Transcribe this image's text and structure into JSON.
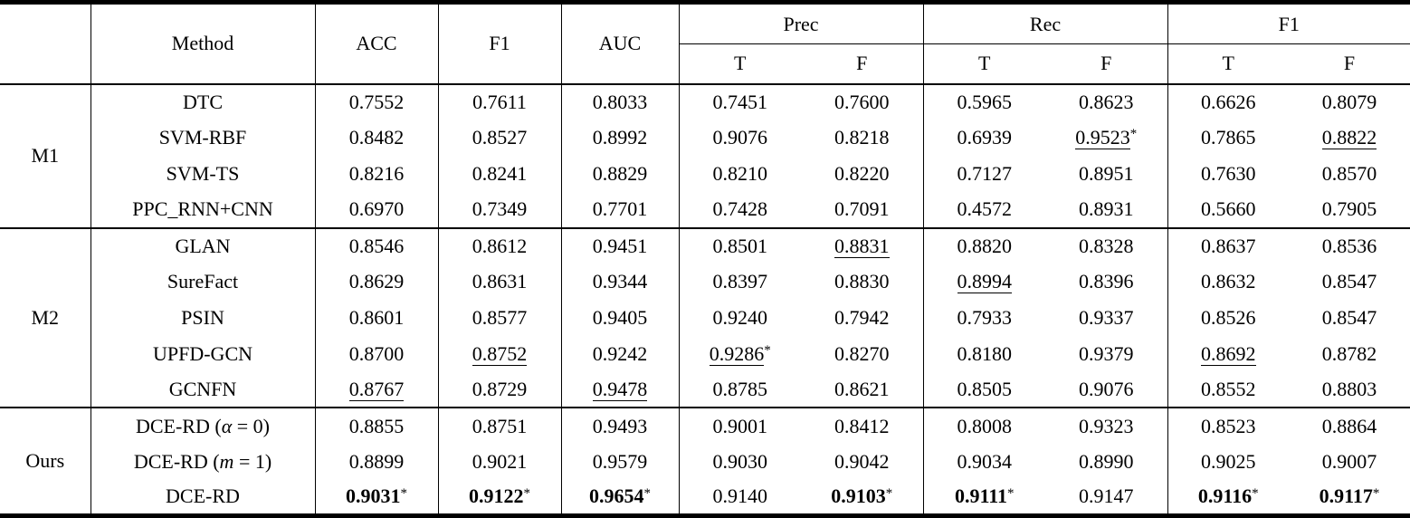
{
  "header": {
    "method": "Method",
    "acc": "ACC",
    "f1": "F1",
    "auc": "AUC",
    "prec": "Prec",
    "rec": "Rec",
    "f1_group": "F1",
    "t": "T",
    "f": "F"
  },
  "colors": {
    "text": "#000000",
    "background": "#ffffff",
    "rule": "#000000"
  },
  "groups": [
    {
      "label": "M1",
      "rows": [
        {
          "method": "DTC",
          "cells": [
            {
              "v": "0.7552"
            },
            {
              "v": "0.7611"
            },
            {
              "v": "0.8033"
            },
            {
              "v": "0.7451"
            },
            {
              "v": "0.7600"
            },
            {
              "v": "0.5965"
            },
            {
              "v": "0.8623"
            },
            {
              "v": "0.6626"
            },
            {
              "v": "0.8079"
            }
          ]
        },
        {
          "method": "SVM-RBF",
          "cells": [
            {
              "v": "0.8482"
            },
            {
              "v": "0.8527"
            },
            {
              "v": "0.8992"
            },
            {
              "v": "0.9076"
            },
            {
              "v": "0.8218"
            },
            {
              "v": "0.6939"
            },
            {
              "v": "0.9523",
              "u": true,
              "star": true
            },
            {
              "v": "0.7865"
            },
            {
              "v": "0.8822",
              "u": true
            }
          ]
        },
        {
          "method": "SVM-TS",
          "cells": [
            {
              "v": "0.8216"
            },
            {
              "v": "0.8241"
            },
            {
              "v": "0.8829"
            },
            {
              "v": "0.8210"
            },
            {
              "v": "0.8220"
            },
            {
              "v": "0.7127"
            },
            {
              "v": "0.8951"
            },
            {
              "v": "0.7630"
            },
            {
              "v": "0.8570"
            }
          ]
        },
        {
          "method": "PPC_RNN+CNN",
          "cells": [
            {
              "v": "0.6970"
            },
            {
              "v": "0.7349"
            },
            {
              "v": "0.7701"
            },
            {
              "v": "0.7428"
            },
            {
              "v": "0.7091"
            },
            {
              "v": "0.4572"
            },
            {
              "v": "0.8931"
            },
            {
              "v": "0.5660"
            },
            {
              "v": "0.7905"
            }
          ]
        }
      ]
    },
    {
      "label": "M2",
      "rows": [
        {
          "method": "GLAN",
          "cells": [
            {
              "v": "0.8546"
            },
            {
              "v": "0.8612"
            },
            {
              "v": "0.9451"
            },
            {
              "v": "0.8501"
            },
            {
              "v": "0.8831",
              "u": true
            },
            {
              "v": "0.8820"
            },
            {
              "v": "0.8328"
            },
            {
              "v": "0.8637"
            },
            {
              "v": "0.8536"
            }
          ]
        },
        {
          "method": "SureFact",
          "cells": [
            {
              "v": "0.8629"
            },
            {
              "v": "0.8631"
            },
            {
              "v": "0.9344"
            },
            {
              "v": "0.8397"
            },
            {
              "v": "0.8830"
            },
            {
              "v": "0.8994",
              "u": true
            },
            {
              "v": "0.8396"
            },
            {
              "v": "0.8632"
            },
            {
              "v": "0.8547"
            }
          ]
        },
        {
          "method": "PSIN",
          "cells": [
            {
              "v": "0.8601"
            },
            {
              "v": "0.8577"
            },
            {
              "v": "0.9405"
            },
            {
              "v": "0.9240"
            },
            {
              "v": "0.7942"
            },
            {
              "v": "0.7933"
            },
            {
              "v": "0.9337"
            },
            {
              "v": "0.8526"
            },
            {
              "v": "0.8547"
            }
          ]
        },
        {
          "method": "UPFD-GCN",
          "cells": [
            {
              "v": "0.8700"
            },
            {
              "v": "0.8752",
              "u": true
            },
            {
              "v": "0.9242"
            },
            {
              "v": "0.9286",
              "u": true,
              "star": true
            },
            {
              "v": "0.8270"
            },
            {
              "v": "0.8180"
            },
            {
              "v": "0.9379"
            },
            {
              "v": "0.8692",
              "u": true
            },
            {
              "v": "0.8782"
            }
          ]
        },
        {
          "method": "GCNFN",
          "cells": [
            {
              "v": "0.8767",
              "u": true
            },
            {
              "v": "0.8729"
            },
            {
              "v": "0.9478",
              "u": true
            },
            {
              "v": "0.8785"
            },
            {
              "v": "0.8621"
            },
            {
              "v": "0.8505"
            },
            {
              "v": "0.9076"
            },
            {
              "v": "0.8552"
            },
            {
              "v": "0.8803"
            }
          ]
        }
      ]
    },
    {
      "label": "Ours",
      "rows": [
        {
          "method": "DCE-RD (α = 0)",
          "cells": [
            {
              "v": "0.8855"
            },
            {
              "v": "0.8751"
            },
            {
              "v": "0.9493"
            },
            {
              "v": "0.9001"
            },
            {
              "v": "0.8412"
            },
            {
              "v": "0.8008"
            },
            {
              "v": "0.9323"
            },
            {
              "v": "0.8523"
            },
            {
              "v": "0.8864"
            }
          ]
        },
        {
          "method": "DCE-RD (m = 1)",
          "cells": [
            {
              "v": "0.8899"
            },
            {
              "v": "0.9021"
            },
            {
              "v": "0.9579"
            },
            {
              "v": "0.9030"
            },
            {
              "v": "0.9042"
            },
            {
              "v": "0.9034"
            },
            {
              "v": "0.8990"
            },
            {
              "v": "0.9025"
            },
            {
              "v": "0.9007"
            }
          ]
        },
        {
          "method": "DCE-RD",
          "cells": [
            {
              "v": "0.9031",
              "b": true,
              "star": true
            },
            {
              "v": "0.9122",
              "b": true,
              "star": true
            },
            {
              "v": "0.9654",
              "b": true,
              "star": true
            },
            {
              "v": "0.9140"
            },
            {
              "v": "0.9103",
              "b": true,
              "star": true
            },
            {
              "v": "0.9111",
              "b": true,
              "star": true
            },
            {
              "v": "0.9147"
            },
            {
              "v": "0.9116",
              "b": true,
              "star": true
            },
            {
              "v": "0.9117",
              "b": true,
              "star": true
            }
          ]
        }
      ]
    }
  ]
}
